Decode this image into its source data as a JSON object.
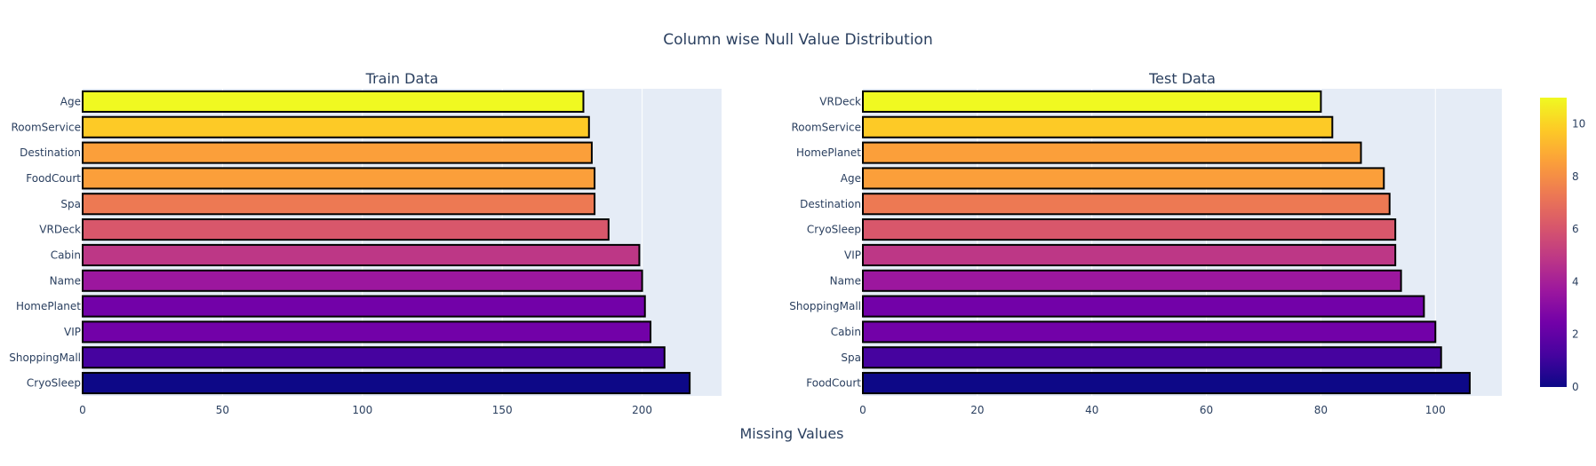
{
  "figure": {
    "title": "Column wise Null Value Distribution",
    "xlabel": "Missing Values"
  },
  "chart_data": [
    {
      "type": "bar",
      "orientation": "horizontal",
      "title": "Train Data",
      "xlabel": "Missing Values",
      "ylabel": "",
      "categories": [
        "CryoSleep",
        "ShoppingMall",
        "VIP",
        "HomePlanet",
        "Name",
        "Cabin",
        "VRDeck",
        "Spa",
        "FoodCourt",
        "Destination",
        "RoomService",
        "Age"
      ],
      "values": [
        217,
        208,
        203,
        201,
        200,
        199,
        188,
        183,
        183,
        182,
        181,
        179
      ],
      "color_index": [
        0,
        1,
        2,
        3,
        4,
        5,
        6,
        7,
        8,
        9,
        10,
        11
      ],
      "xlim": [
        0,
        228.4
      ],
      "xticks": [
        0,
        50,
        100,
        150,
        200
      ],
      "grid": true
    },
    {
      "type": "bar",
      "orientation": "horizontal",
      "title": "Test Data",
      "xlabel": "Missing Values",
      "ylabel": "",
      "categories": [
        "FoodCourt",
        "Spa",
        "Cabin",
        "ShoppingMall",
        "Name",
        "VIP",
        "CryoSleep",
        "Destination",
        "Age",
        "HomePlanet",
        "RoomService",
        "VRDeck"
      ],
      "values": [
        106,
        101,
        100,
        98,
        94,
        93,
        93,
        92,
        91,
        87,
        82,
        80
      ],
      "color_index": [
        0,
        1,
        2,
        3,
        4,
        5,
        6,
        7,
        8,
        9,
        10,
        11
      ],
      "xlim": [
        0,
        111.6
      ],
      "xticks": [
        0,
        20,
        40,
        60,
        80,
        100
      ],
      "grid": true
    }
  ],
  "colorbar": {
    "range": [
      0,
      11
    ],
    "ticks": [
      0,
      2,
      4,
      6,
      8,
      10
    ],
    "colorscale": [
      "#0d0887",
      "#46039f",
      "#7201a8",
      "#9c179e",
      "#bd3786",
      "#d8576b",
      "#ed7953",
      "#fb9f3a",
      "#fdca26",
      "#f0f921"
    ]
  },
  "style": {
    "plot_bg": "#e5ecf6",
    "grid_color": "#ffffff",
    "text_color": "#2a3f5f",
    "bar_outline": "#000000"
  }
}
